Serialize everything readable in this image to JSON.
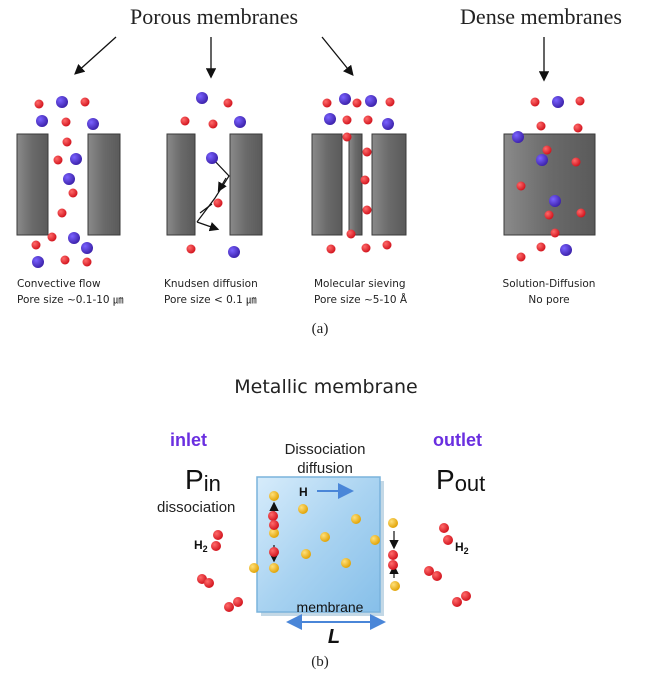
{
  "part_a": {
    "header_porous": "Porous membranes",
    "header_dense": "Dense membranes",
    "panels": [
      {
        "mechanism": "Convective flow",
        "pore": "Pore size ~0.1-10 ㎛"
      },
      {
        "mechanism": "Knudsen diffusion",
        "pore": "Pore size  < 0.1 ㎛"
      },
      {
        "mechanism": "Molecular sieving",
        "pore": "Pore size ~5-10 Å"
      },
      {
        "mechanism": "Solution-Diffusion",
        "pore": "No pore"
      }
    ],
    "caption": "(a)"
  },
  "part_b": {
    "title": "Metallic membrane",
    "inlet": "inlet",
    "outlet": "outlet",
    "p_in_main": "P",
    "p_in_sub": "in",
    "p_out_main": "P",
    "p_out_sub": "out",
    "dissociation_left": "dissociation",
    "dissociation_top": "Dissociation",
    "diffusion": "diffusion",
    "h_label": "H",
    "h2_main": "H",
    "h2_sub": "2",
    "membrane_label": "membrane",
    "length_label": "L",
    "caption": "(b)"
  },
  "colors": {
    "red_molecule": "#e8202a",
    "blue_molecule": "#4a2bbf",
    "gold_atom": "#f2b50c",
    "wall": "#6d6d6d",
    "membrane_fill": "#a9d3f1",
    "accent_purple": "#6a2fe0",
    "arrow_blue": "#4a86d8"
  }
}
